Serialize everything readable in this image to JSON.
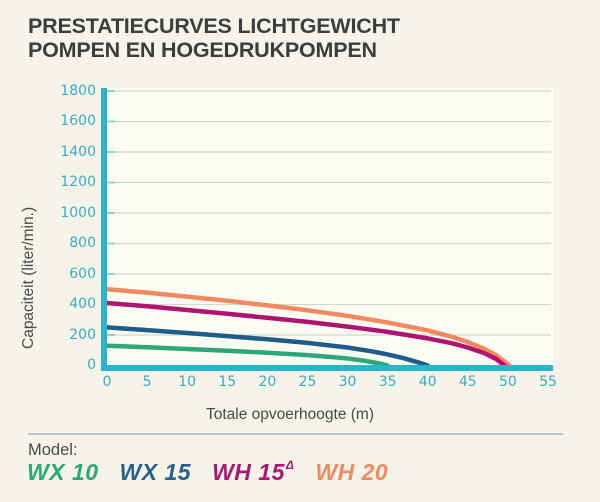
{
  "page": {
    "background": "#f6f4e9"
  },
  "title": {
    "line1": "PRESTATIECURVES LICHTGEWICHT",
    "line2": "POMPEN EN HOGEDRUKPOMPEN"
  },
  "chart_data": {
    "type": "line",
    "title": "Prestatiecurves lichtgewicht pompen en hogedrukpompen",
    "xlabel": "Totale opvoerhoogte (m)",
    "ylabel": "Capaciteit (liter/min.)",
    "xlim": [
      0,
      55
    ],
    "ylim": [
      0,
      1800
    ],
    "xticks": [
      0,
      5,
      10,
      15,
      20,
      25,
      30,
      35,
      40,
      45,
      50,
      55
    ],
    "yticks": [
      0,
      200,
      400,
      600,
      800,
      1000,
      1200,
      1400,
      1600,
      1800
    ],
    "grid": "horizontal",
    "legend_position": "bottom",
    "axis_color": "#29b5c7",
    "tick_label_color": "#3aacc4",
    "gridline_color": "#cfd8d2",
    "series": [
      {
        "name": "WH 20",
        "color": "#f18a60",
        "points": [
          [
            0,
            500
          ],
          [
            5,
            478
          ],
          [
            10,
            452
          ],
          [
            15,
            424
          ],
          [
            20,
            394
          ],
          [
            25,
            362
          ],
          [
            30,
            326
          ],
          [
            35,
            282
          ],
          [
            40,
            230
          ],
          [
            43,
            188
          ],
          [
            45,
            154
          ],
          [
            47,
            110
          ],
          [
            48.5,
            68
          ],
          [
            49.5,
            28
          ],
          [
            50.2,
            0
          ]
        ]
      },
      {
        "name": "WH 15",
        "color": "#ae1570",
        "points": [
          [
            0,
            410
          ],
          [
            5,
            388
          ],
          [
            10,
            364
          ],
          [
            15,
            339
          ],
          [
            20,
            313
          ],
          [
            25,
            286
          ],
          [
            30,
            255
          ],
          [
            35,
            220
          ],
          [
            40,
            178
          ],
          [
            43,
            146
          ],
          [
            45,
            118
          ],
          [
            47,
            82
          ],
          [
            48.5,
            44
          ],
          [
            49.6,
            0
          ]
        ]
      },
      {
        "name": "WX 15",
        "color": "#1e5c89",
        "points": [
          [
            0,
            250
          ],
          [
            5,
            232
          ],
          [
            10,
            213
          ],
          [
            15,
            193
          ],
          [
            20,
            172
          ],
          [
            25,
            148
          ],
          [
            30,
            118
          ],
          [
            33,
            93
          ],
          [
            35,
            73
          ],
          [
            37,
            48
          ],
          [
            39,
            18
          ],
          [
            40,
            0
          ]
        ]
      },
      {
        "name": "WX 10",
        "color": "#2ca87a",
        "points": [
          [
            0,
            130
          ],
          [
            5,
            120
          ],
          [
            10,
            108
          ],
          [
            15,
            97
          ],
          [
            20,
            84
          ],
          [
            25,
            68
          ],
          [
            28,
            56
          ],
          [
            30,
            46
          ],
          [
            32,
            32
          ],
          [
            34,
            13
          ],
          [
            35,
            0
          ]
        ]
      }
    ]
  },
  "legend": {
    "label": "Model:",
    "items": [
      {
        "name": "WX 10",
        "color": "#2aa878",
        "sup": ""
      },
      {
        "name": "WX 15",
        "color": "#27618f",
        "sup": ""
      },
      {
        "name": "WH 15",
        "color": "#a81973",
        "sup": "Δ"
      },
      {
        "name": "WH 20",
        "color": "#f28a62",
        "sup": ""
      }
    ]
  }
}
